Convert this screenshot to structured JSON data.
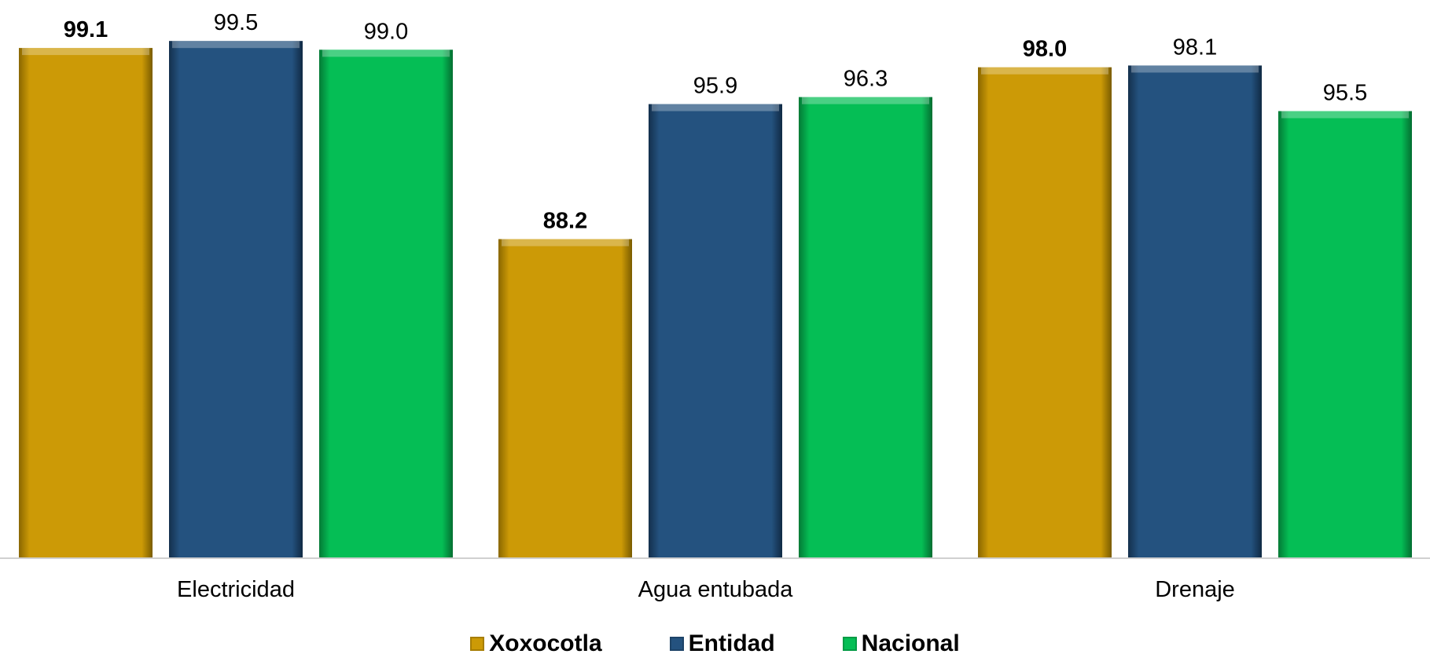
{
  "chart_data": {
    "type": "bar",
    "categories": [
      "Electricidad",
      "Agua entubada",
      "Drenaje"
    ],
    "series": [
      {
        "name": "Xoxocotla",
        "values": [
          99.1,
          88.2,
          98.0
        ],
        "labels": [
          "99.1",
          "88.2",
          "98.0"
        ],
        "color": "#CC9A06",
        "bold_labels": true
      },
      {
        "name": "Entidad",
        "values": [
          99.5,
          95.9,
          98.1
        ],
        "labels": [
          "99.5",
          "95.9",
          "98.1"
        ],
        "color": "#24527F",
        "bold_labels": false
      },
      {
        "name": "Nacional",
        "values": [
          99.0,
          96.3,
          95.5
        ],
        "labels": [
          "99.0",
          "96.3",
          "95.5"
        ],
        "color": "#05BE55",
        "bold_labels": false
      }
    ],
    "ylim": [
      70,
      100
    ],
    "grid": false,
    "legend_position": "bottom"
  }
}
